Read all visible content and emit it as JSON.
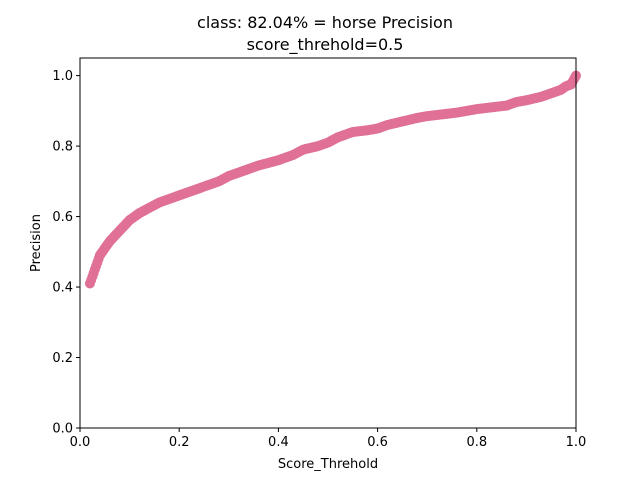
{
  "chart_data": {
    "type": "scatter",
    "title": "class: 82.04% = horse Precision",
    "subtitle": "score_threhold=0.5",
    "xlabel": "Score_Threhold",
    "ylabel": "Precision",
    "xlim": [
      0.0,
      1.0
    ],
    "ylim": [
      0.0,
      1.05
    ],
    "xticks": [
      0.0,
      0.2,
      0.4,
      0.6,
      0.8,
      1.0
    ],
    "xtick_labels": [
      "0.0",
      "0.2",
      "0.4",
      "0.6",
      "0.8",
      "1.0"
    ],
    "yticks": [
      0.0,
      0.2,
      0.4,
      0.6,
      0.8,
      1.0
    ],
    "ytick_labels": [
      "0.0",
      "0.2",
      "0.4",
      "0.6",
      "0.8",
      "1.0"
    ],
    "grid": false,
    "legend": "none",
    "marker_color": "#e07095",
    "series": [
      {
        "x": [
          0.02,
          0.025,
          0.03,
          0.035,
          0.04,
          0.05,
          0.06,
          0.07,
          0.08,
          0.09,
          0.1,
          0.12,
          0.14,
          0.16,
          0.18,
          0.2,
          0.22,
          0.25,
          0.28,
          0.3,
          0.33,
          0.36,
          0.4,
          0.43,
          0.45,
          0.48,
          0.5,
          0.52,
          0.55,
          0.58,
          0.6,
          0.62,
          0.65,
          0.68,
          0.7,
          0.73,
          0.76,
          0.8,
          0.83,
          0.86,
          0.88,
          0.9,
          0.93,
          0.95,
          0.97,
          0.98,
          0.99,
          1.0
        ],
        "y": [
          0.41,
          0.43,
          0.45,
          0.47,
          0.49,
          0.51,
          0.53,
          0.545,
          0.56,
          0.575,
          0.59,
          0.61,
          0.625,
          0.64,
          0.65,
          0.66,
          0.67,
          0.685,
          0.7,
          0.715,
          0.73,
          0.745,
          0.76,
          0.775,
          0.79,
          0.8,
          0.81,
          0.825,
          0.84,
          0.845,
          0.85,
          0.86,
          0.87,
          0.88,
          0.885,
          0.89,
          0.895,
          0.905,
          0.91,
          0.915,
          0.925,
          0.93,
          0.94,
          0.95,
          0.96,
          0.97,
          0.975,
          1.0
        ]
      }
    ]
  }
}
